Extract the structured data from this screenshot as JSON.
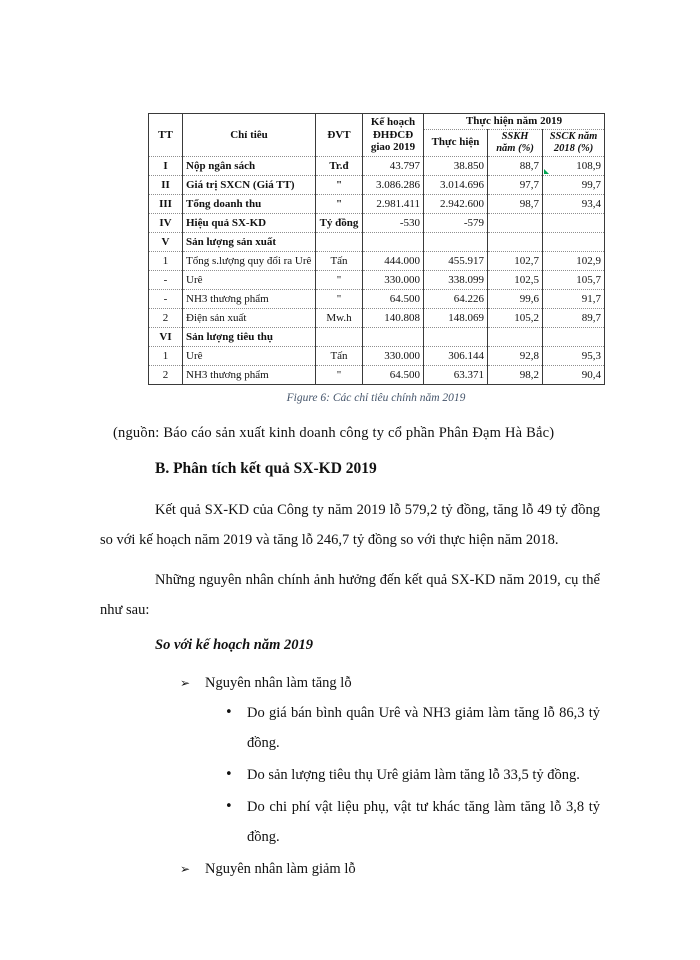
{
  "table": {
    "header": {
      "tt": "TT",
      "chi_tieu": "Chỉ tiêu",
      "dvt": "ĐVT",
      "ke_hoach": "Kế hoạch ĐHĐCĐ giao 2019",
      "thuc_hien_nam": "Thực hiện năm 2019",
      "thuc_hien": "Thực hiện",
      "sskh": "SSKH năm (%)",
      "ssck": "SSCK năm 2018 (%)"
    },
    "rows": [
      {
        "tt": "I",
        "name": "Nộp ngân sách",
        "unit": "Tr.đ",
        "plan": "43.797",
        "actual": "38.850",
        "sskh": "88,7",
        "ssck": "108,9",
        "section": true,
        "marker": true
      },
      {
        "tt": "II",
        "name": "Giá trị SXCN (Giá TT)",
        "unit": "\"",
        "plan": "3.086.286",
        "actual": "3.014.696",
        "sskh": "97,7",
        "ssck": "99,7",
        "section": true
      },
      {
        "tt": "III",
        "name": "Tổng doanh thu",
        "unit": "\"",
        "plan": "2.981.411",
        "actual": "2.942.600",
        "sskh": "98,7",
        "ssck": "93,4",
        "section": true
      },
      {
        "tt": "IV",
        "name": "Hiệu quả SX-KD",
        "unit": "Tỷ đồng",
        "plan": "-530",
        "actual": "-579",
        "sskh": "",
        "ssck": "",
        "section": true
      },
      {
        "tt": "V",
        "name": "Sản lượng sản xuất",
        "unit": "",
        "plan": "",
        "actual": "",
        "sskh": "",
        "ssck": "",
        "section": true
      },
      {
        "tt": "1",
        "name": "Tổng s.lượng quy đổi ra Urê",
        "unit": "Tấn",
        "plan": "444.000",
        "actual": "455.917",
        "sskh": "102,7",
        "ssck": "102,9",
        "section": false
      },
      {
        "tt": "-",
        "name": "Urê",
        "unit": "\"",
        "plan": "330.000",
        "actual": "338.099",
        "sskh": "102,5",
        "ssck": "105,7",
        "section": false
      },
      {
        "tt": "-",
        "name": "NH3 thương phẩm",
        "unit": "\"",
        "plan": "64.500",
        "actual": "64.226",
        "sskh": "99,6",
        "ssck": "91,7",
        "section": false
      },
      {
        "tt": "2",
        "name": "Điện sản xuất",
        "unit": "Mw.h",
        "plan": "140.808",
        "actual": "148.069",
        "sskh": "105,2",
        "ssck": "89,7",
        "section": false
      },
      {
        "tt": "VI",
        "name": "Sản lượng tiêu thụ",
        "unit": "",
        "plan": "",
        "actual": "",
        "sskh": "",
        "ssck": "",
        "section": true
      },
      {
        "tt": "1",
        "name": "Urê",
        "unit": "Tấn",
        "plan": "330.000",
        "actual": "306.144",
        "sskh": "92,8",
        "ssck": "95,3",
        "section": false
      },
      {
        "tt": "2",
        "name": "NH3 thương phẩm",
        "unit": "\"",
        "plan": "64.500",
        "actual": "63.371",
        "sskh": "98,2",
        "ssck": "90,4",
        "section": false
      }
    ]
  },
  "caption": "Figure 6: Các chỉ tiêu chính năm 2019",
  "source": "(nguồn: Báo cáo sản xuất kinh doanh công ty cổ phần Phân Đạm Hà Bắc)",
  "heading_b": "B. Phân tích kết quả SX-KD 2019",
  "para1": "Kết quả SX-KD của Công ty năm 2019 lỗ 579,2 tỷ đồng, tăng lỗ 49 tỷ đồng so với kế hoạch năm 2019 và tăng lỗ 246,7 tỷ đồng so với thực hiện năm 2018.",
  "para2": "Những nguyên nhân chính ảnh hưởng đến kết quả SX-KD năm 2019, cụ thể như sau:",
  "subheading": "So với kế hoạch năm 2019",
  "list": {
    "arrow_glyph": "➢",
    "dot_glyph": "•",
    "arrow1": "Nguyên nhân làm tăng lỗ",
    "bullets": [
      "Do giá bán bình quân Urê và NH3 giảm làm tăng lỗ 86,3 tỷ đồng.",
      "Do sản lượng tiêu thụ Urê giảm làm tăng lỗ 33,5 tỷ đồng.",
      "Do chi phí vật liệu phụ, vật tư khác tăng làm tăng lỗ 3,8 tỷ đồng."
    ],
    "arrow2": "Nguyên nhân làm giảm lỗ"
  },
  "colors": {
    "caption_text": "#44546A",
    "comment_marker": "#00a651",
    "table_vertical_rule": "#3a3a3a",
    "table_horizontal_rule": "#8f8f8f"
  }
}
